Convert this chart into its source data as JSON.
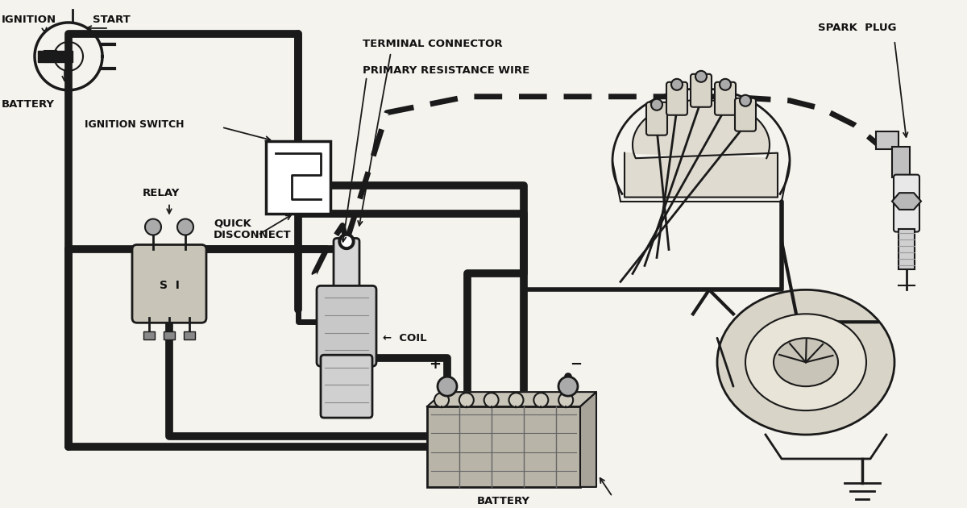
{
  "bg_color": "#f5f3ee",
  "lc": "#1a1a1a",
  "wc": "#1a1a1a",
  "wire_lw": 7,
  "thin_lw": 2,
  "labels": {
    "ignition": "IGNITION",
    "start": "START",
    "battery_left": "BATTERY",
    "ign_switch": "IGNITION SWITCH",
    "terminal": "TERMINAL CONNECTOR",
    "primary": "PRIMARY RESISTANCE WIRE",
    "spark_plug": "SPARK  PLUG",
    "quick": "QUICK\nDISCONNECT",
    "relay": "RELAY",
    "coil": "←  COIL",
    "battery": "BATTERY"
  },
  "font": "sans-serif",
  "label_fontsize": 9.5,
  "figsize": [
    12.0,
    6.3
  ],
  "dpi": 100
}
